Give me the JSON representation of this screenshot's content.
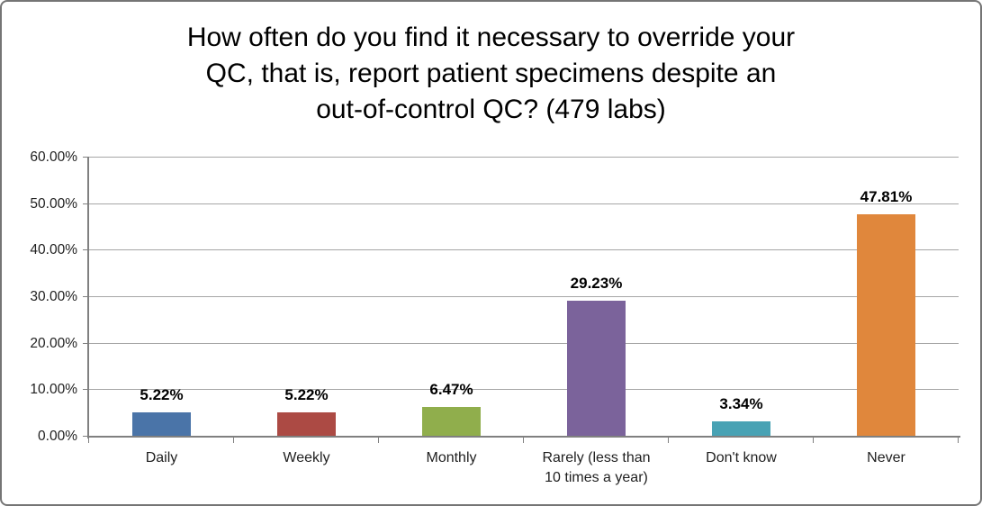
{
  "frame": {
    "background_color": "#FFFFFF",
    "border_color": "#757575"
  },
  "chart_data": {
    "type": "bar",
    "title": "How often do you find it necessary to override your QC, that is, report patient specimens despite an out-of-control QC? (479 labs)",
    "title_lines": [
      "How often do you find it necessary to override your",
      "QC, that is, report patient specimens despite an",
      "out-of-control QC? (479 labs)"
    ],
    "categories": [
      "Daily",
      "Weekly",
      "Monthly",
      "Rarely (less than 10 times a year)",
      "Don't know",
      "Never"
    ],
    "category_display_lines": [
      [
        "Daily"
      ],
      [
        "Weekly"
      ],
      [
        "Monthly"
      ],
      [
        "Rarely (less than",
        "10 times a year)"
      ],
      [
        "Don't know"
      ],
      [
        "Never"
      ]
    ],
    "values": [
      5.22,
      5.22,
      6.47,
      29.23,
      3.34,
      47.81
    ],
    "value_labels": [
      "5.22%",
      "5.22%",
      "6.47%",
      "29.23%",
      "3.34%",
      "47.81%"
    ],
    "bar_colors": [
      "#4A74A8",
      "#AC4A44",
      "#90AE4C",
      "#7B639B",
      "#48A2B4",
      "#E0873C"
    ],
    "xlabel": "",
    "ylabel": "",
    "ylim": [
      0,
      60
    ],
    "ytick_step": 10,
    "ytick_labels": [
      "0.00%",
      "10.00%",
      "20.00%",
      "30.00%",
      "40.00%",
      "50.00%",
      "60.00%"
    ],
    "grid": true,
    "legend": false,
    "gridline_color": "#A6A6A6",
    "axis_color": "#808080",
    "title_color": "#000000",
    "label_color": "#1f1f1f",
    "data_label_color": "#000000"
  }
}
